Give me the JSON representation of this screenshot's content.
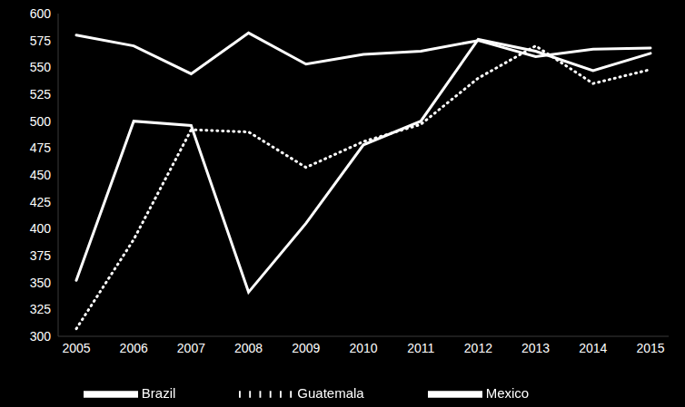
{
  "chart_data": {
    "type": "line",
    "categories": [
      "2005",
      "2006",
      "2007",
      "2008",
      "2009",
      "2010",
      "2011",
      "2012",
      "2013",
      "2014",
      "2015"
    ],
    "series": [
      {
        "name": "Brazil",
        "color": "#ffffff",
        "line_style": "solid",
        "values": [
          352,
          500,
          496,
          341,
          405,
          478,
          500,
          576,
          565,
          547,
          563
        ]
      },
      {
        "name": "Mexico",
        "color": "#ffffff",
        "line_style": "solid",
        "values": [
          580,
          570,
          544,
          582,
          553,
          562,
          565,
          575,
          560,
          567,
          568
        ]
      },
      {
        "name": "Guatemala",
        "color": "#ffffff",
        "line_style": "dotted",
        "values": [
          307,
          390,
          492,
          490,
          457,
          481,
          497,
          540,
          570,
          535,
          548
        ]
      }
    ],
    "ylim": [
      300,
      600
    ],
    "yticks": [
      300,
      325,
      350,
      375,
      400,
      425,
      450,
      475,
      500,
      525,
      550,
      575,
      600
    ],
    "grid": false,
    "legend": "bottom"
  }
}
